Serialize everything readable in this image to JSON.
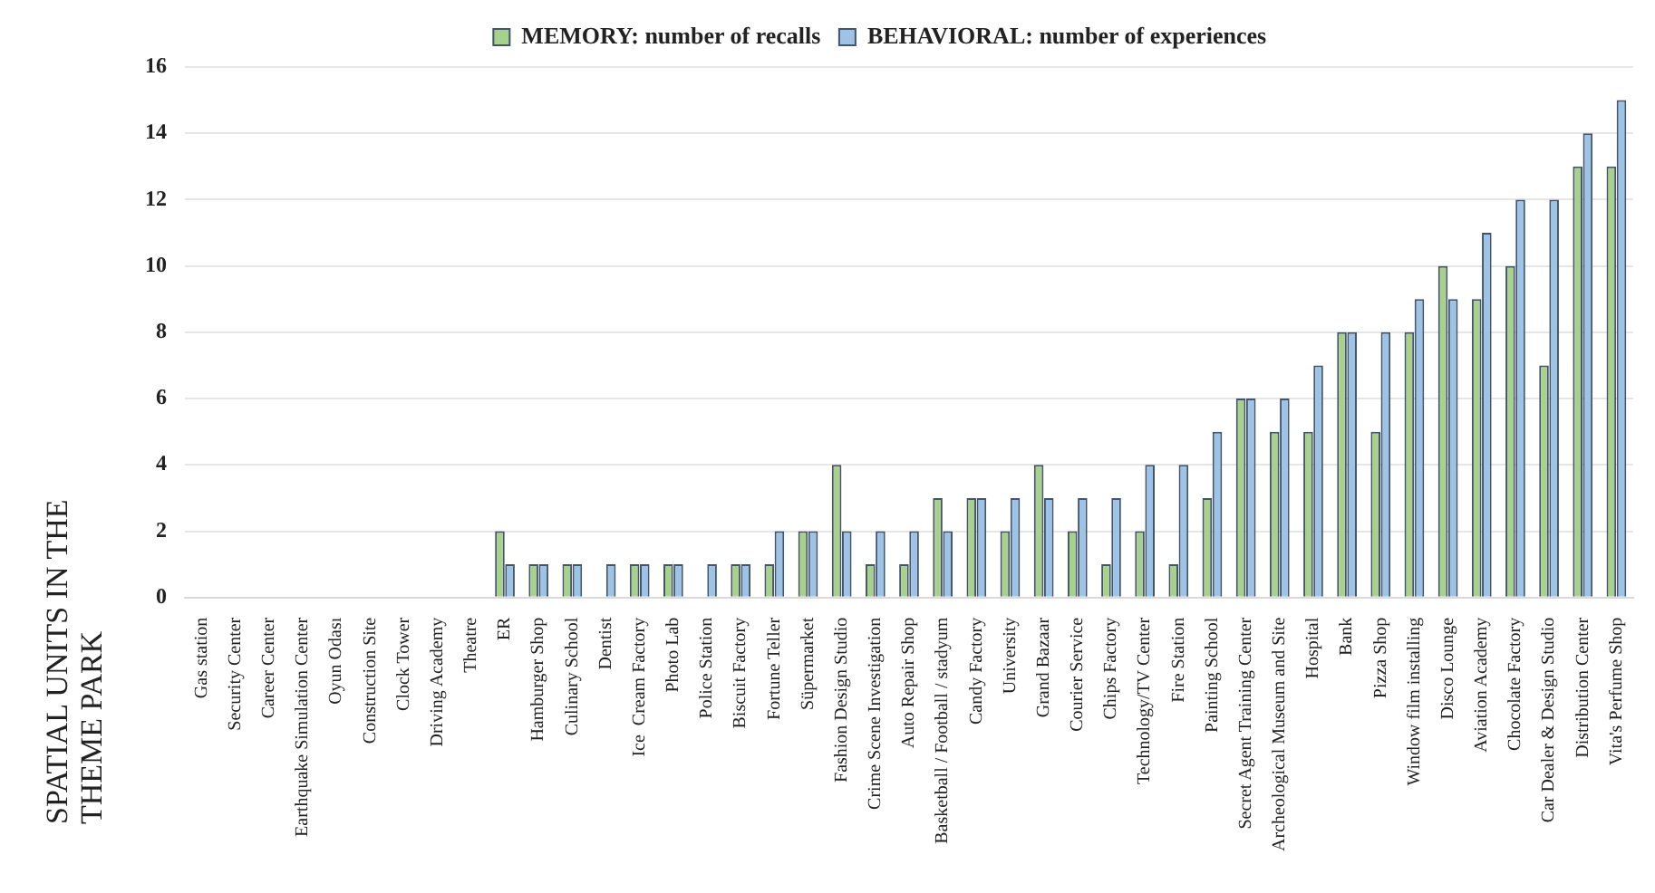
{
  "chart_data": {
    "type": "bar",
    "ylabel": "SPATIAL UNITS IN THE THEME PARK",
    "categories": [
      "Gas station",
      "Security Center",
      "Career Center",
      "Earthquake Simulation Center",
      "Oyun Odası",
      "Construction Site",
      "Clock Tower",
      "Driving Academy",
      "Theatre",
      "ER",
      "Hamburger Shop",
      "Culinary School",
      "Dentist",
      "Ice  Cream Factory",
      "Photo Lab",
      "Police Station",
      "Biscuit Factory",
      "Fortune Teller",
      "Süpermarket",
      "Fashion Design Studio",
      "Crime Scene Investigation",
      "Auto Repair Shop",
      "Basketball / Football / stadyum",
      "Candy Factory",
      "University",
      "Grand Bazaar",
      "Courier Service",
      "Chips Factory",
      "Technology/TV Center",
      "Fire Station",
      "Painting School",
      "Secret Agent Training Center",
      "Archeological Museum and Site",
      "Hospital",
      "Bank",
      "Pizza Shop",
      "Window film installing",
      "Disco Lounge",
      "Aviation Academy",
      "Chocolate Factory",
      "Car Dealer & Design Studio",
      "Distribution Center",
      "Vita's Perfume Shop"
    ],
    "series": [
      {
        "name": "MEMORY: number of recalls",
        "color": "#a9d18e",
        "values": [
          0,
          0,
          0,
          0,
          0,
          0,
          0,
          0,
          0,
          2,
          1,
          1,
          0,
          1,
          1,
          0,
          1,
          1,
          2,
          4,
          1,
          1,
          3,
          3,
          2,
          4,
          2,
          1,
          2,
          1,
          3,
          6,
          5,
          5,
          8,
          5,
          8,
          10,
          9,
          10,
          7,
          13,
          13
        ]
      },
      {
        "name": "BEHAVIORAL: number of experiences",
        "color": "#9dc3e6",
        "values": [
          0,
          0,
          0,
          0,
          0,
          0,
          0,
          0,
          0,
          1,
          1,
          1,
          1,
          1,
          1,
          1,
          1,
          2,
          2,
          2,
          2,
          2,
          2,
          3,
          3,
          3,
          3,
          3,
          4,
          4,
          5,
          6,
          6,
          7,
          8,
          8,
          9,
          9,
          11,
          12,
          12,
          14,
          15
        ]
      }
    ],
    "ylim": [
      0,
      16
    ],
    "yticks": [
      0,
      2,
      4,
      6,
      8,
      10,
      12,
      14,
      16
    ],
    "grid": "y",
    "legend": "top"
  }
}
